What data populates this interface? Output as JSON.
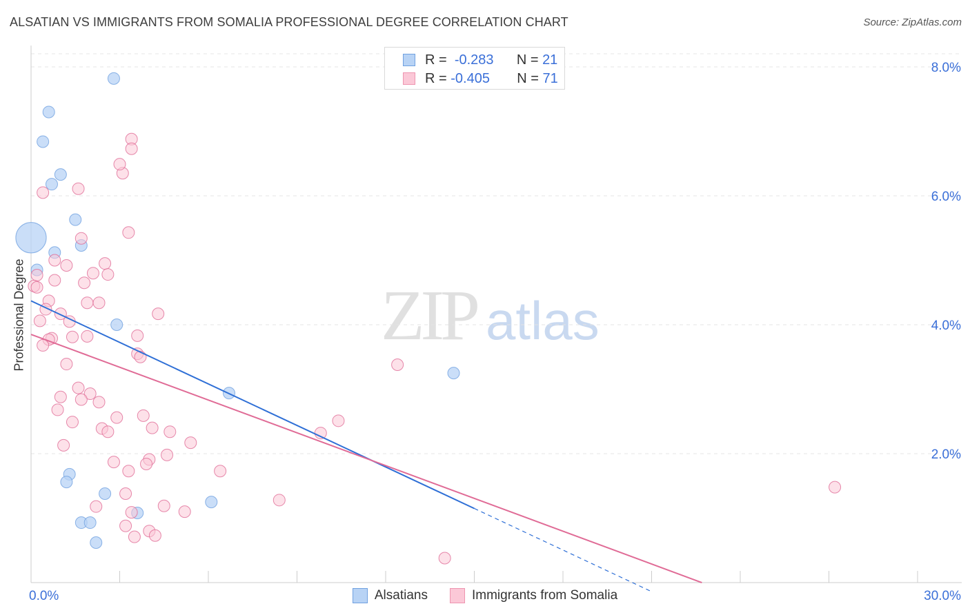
{
  "title": "ALSATIAN VS IMMIGRANTS FROM SOMALIA PROFESSIONAL DEGREE CORRELATION CHART",
  "source": "Source: ZipAtlas.com",
  "watermark": {
    "part1": "ZIP",
    "part2": "atlas"
  },
  "stats": [
    {
      "r_label": "R =",
      "r_value": "-0.283",
      "n_label": "N =",
      "n_value": "21",
      "fill": "#b8d3f5",
      "stroke": "#6fa0e0"
    },
    {
      "r_label": "R =",
      "r_value": "-0.405",
      "n_label": "N =",
      "n_value": "71",
      "fill": "#fbc8d7",
      "stroke": "#ee94b0"
    }
  ],
  "legend": [
    {
      "label": "Alsatians",
      "fill": "#b8d3f5",
      "stroke": "#6fa0e0"
    },
    {
      "label": "Immigrants from Somalia",
      "fill": "#fbc8d7",
      "stroke": "#ee94b0"
    }
  ],
  "chart_data": {
    "type": "scatter",
    "title": "ALSATIAN VS IMMIGRANTS FROM SOMALIA PROFESSIONAL DEGREE CORRELATION CHART",
    "xlabel": "",
    "ylabel": "Professional Degree",
    "xlim": [
      0,
      30
    ],
    "ylim": [
      0,
      8.0
    ],
    "x_tick_labels": [
      {
        "value": 0,
        "label": "0.0%"
      },
      {
        "value": 30,
        "label": "30.0%"
      }
    ],
    "x_minor_ticks": [
      3,
      6,
      9,
      12,
      15,
      18,
      21,
      24,
      27,
      30
    ],
    "y_ticks": [
      {
        "value": 2,
        "label": "2.0%"
      },
      {
        "value": 4,
        "label": "4.0%"
      },
      {
        "value": 6,
        "label": "6.0%"
      },
      {
        "value": 8,
        "label": "8.0%"
      }
    ],
    "grid": true,
    "series": [
      {
        "name": "Alsatians",
        "color": "#6fa0e0",
        "fill": "#b8d3f5",
        "trend": {
          "x0": 0,
          "y0": 4.37,
          "x1": 15.0,
          "y1": 1.15,
          "dash_to_x": 21.0,
          "dash_to_y": -0.14
        },
        "points": [
          [
            2.8,
            7.82
          ],
          [
            0.6,
            7.3
          ],
          [
            0.4,
            6.84
          ],
          [
            1.0,
            6.33
          ],
          [
            0.7,
            6.18
          ],
          [
            1.5,
            5.63
          ],
          [
            0.0,
            5.35
          ],
          [
            1.7,
            5.23
          ],
          [
            0.8,
            5.12
          ],
          [
            0.2,
            4.85
          ],
          [
            2.9,
            4.0
          ],
          [
            14.3,
            3.25
          ],
          [
            6.7,
            2.94
          ],
          [
            1.3,
            1.68
          ],
          [
            1.2,
            1.56
          ],
          [
            2.5,
            1.38
          ],
          [
            3.6,
            1.08
          ],
          [
            6.1,
            1.25
          ],
          [
            1.7,
            0.93
          ],
          [
            2.0,
            0.93
          ],
          [
            2.2,
            0.62
          ]
        ],
        "sizes": [
          1,
          1,
          1,
          1,
          1,
          1,
          2.6,
          1,
          1,
          1,
          1,
          1,
          1,
          1,
          1,
          1,
          1,
          1,
          1,
          1,
          1
        ]
      },
      {
        "name": "Immigrants from Somalia",
        "color": "#e06b96",
        "fill": "#fbc8d7",
        "trend": {
          "x0": 0,
          "y0": 3.85,
          "x1": 22.7,
          "y1": 0.0
        },
        "points": [
          [
            3.4,
            6.88
          ],
          [
            3.4,
            6.73
          ],
          [
            3.1,
            6.35
          ],
          [
            3.0,
            6.49
          ],
          [
            1.6,
            6.11
          ],
          [
            0.4,
            6.05
          ],
          [
            3.3,
            5.43
          ],
          [
            1.7,
            5.34
          ],
          [
            0.8,
            5.0
          ],
          [
            2.5,
            4.95
          ],
          [
            1.2,
            4.92
          ],
          [
            2.1,
            4.8
          ],
          [
            2.6,
            4.78
          ],
          [
            0.2,
            4.77
          ],
          [
            0.8,
            4.69
          ],
          [
            1.8,
            4.65
          ],
          [
            0.1,
            4.6
          ],
          [
            0.2,
            4.58
          ],
          [
            0.6,
            4.37
          ],
          [
            1.9,
            4.34
          ],
          [
            2.3,
            4.34
          ],
          [
            0.5,
            4.24
          ],
          [
            1.0,
            4.17
          ],
          [
            4.3,
            4.17
          ],
          [
            1.3,
            4.05
          ],
          [
            0.3,
            4.06
          ],
          [
            3.6,
            3.83
          ],
          [
            1.9,
            3.82
          ],
          [
            1.4,
            3.81
          ],
          [
            0.7,
            3.79
          ],
          [
            0.6,
            3.77
          ],
          [
            0.4,
            3.68
          ],
          [
            3.6,
            3.55
          ],
          [
            3.7,
            3.5
          ],
          [
            12.4,
            3.38
          ],
          [
            1.2,
            3.39
          ],
          [
            1.6,
            3.02
          ],
          [
            2.0,
            2.93
          ],
          [
            1.0,
            2.88
          ],
          [
            1.7,
            2.84
          ],
          [
            2.3,
            2.8
          ],
          [
            0.9,
            2.68
          ],
          [
            3.8,
            2.59
          ],
          [
            2.9,
            2.56
          ],
          [
            10.4,
            2.51
          ],
          [
            1.4,
            2.49
          ],
          [
            2.4,
            2.39
          ],
          [
            4.1,
            2.4
          ],
          [
            2.6,
            2.34
          ],
          [
            4.7,
            2.34
          ],
          [
            9.8,
            2.32
          ],
          [
            5.4,
            2.17
          ],
          [
            1.1,
            2.13
          ],
          [
            4.6,
            1.98
          ],
          [
            2.8,
            1.87
          ],
          [
            4.0,
            1.91
          ],
          [
            3.9,
            1.84
          ],
          [
            6.4,
            1.73
          ],
          [
            3.3,
            1.73
          ],
          [
            3.2,
            1.38
          ],
          [
            8.4,
            1.28
          ],
          [
            2.2,
            1.18
          ],
          [
            4.5,
            1.19
          ],
          [
            3.4,
            1.09
          ],
          [
            5.2,
            1.1
          ],
          [
            3.2,
            0.88
          ],
          [
            4.0,
            0.8
          ],
          [
            4.2,
            0.73
          ],
          [
            3.5,
            0.71
          ],
          [
            14.0,
            0.38
          ],
          [
            27.2,
            1.48
          ]
        ]
      }
    ]
  }
}
